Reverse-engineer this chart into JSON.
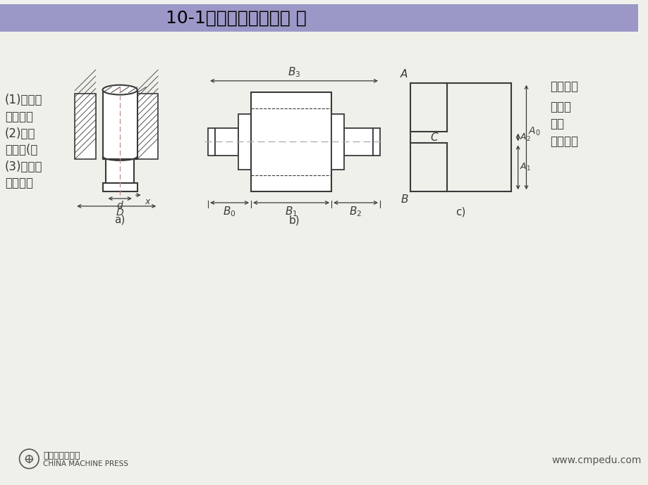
{
  "title": "10-1装配尺寸链及解算 ［",
  "title_bg": "#9b98c8",
  "bg_color": "#f0f0eb",
  "line_color": "#3a3a3a",
  "hatch_color": "#3a3a3a",
  "text_left_lines": [
    "(1)尺寸鿠",
    "联系的尺",
    "(2)链环",
    "为线环(次",
    "(3)封闭环",
    "性能要求"
  ],
  "text_right_lines": [
    "这些相互",
    "链环分",
    "环。",
    "品的设计"
  ],
  "footer_right": "www.cmpedu.com",
  "publisher": "机械工业出版社",
  "publisher_en": "CHINA MACHINE PRESS"
}
